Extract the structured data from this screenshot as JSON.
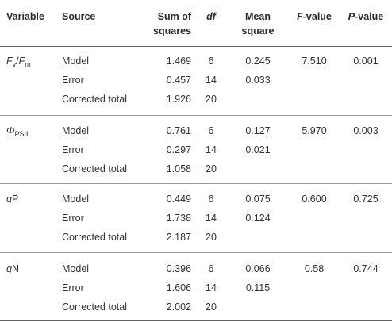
{
  "header": {
    "variable": "Variable",
    "source": "Source",
    "sum_sq_line1": "Sum of",
    "sum_sq_line2": "squares",
    "df": "df",
    "mean_sq_line1": "Mean",
    "mean_sq_line2": "square",
    "f_value_letter": "F",
    "f_value_suffix": "-value",
    "p_value_letter": "P",
    "p_value_suffix": "-value"
  },
  "groups": [
    {
      "variable_main": "F",
      "variable_sub": "v",
      "variable_sep": "/",
      "variable_main2": "F",
      "variable_sub2": "m",
      "f_value": "7.510",
      "p_value": "0.001",
      "rows": [
        {
          "source": "Model",
          "ss": "1.469",
          "df": "6",
          "ms": "0.245"
        },
        {
          "source": "Error",
          "ss": "0.457",
          "df": "14",
          "ms": "0.033"
        },
        {
          "source": "Corrected total",
          "ss": "1.926",
          "df": "20",
          "ms": ""
        }
      ]
    },
    {
      "variable_main": "Φ",
      "variable_sub": "PSII",
      "f_value": "5.970",
      "p_value": "0.003",
      "rows": [
        {
          "source": "Model",
          "ss": "0.761",
          "df": "6",
          "ms": "0.127"
        },
        {
          "source": "Error",
          "ss": "0.297",
          "df": "14",
          "ms": "0.021"
        },
        {
          "source": "Corrected total",
          "ss": "1.058",
          "df": "20",
          "ms": ""
        }
      ]
    },
    {
      "variable_main": "q",
      "variable_rest": "P",
      "f_value": "0.600",
      "p_value": "0.725",
      "rows": [
        {
          "source": "Model",
          "ss": "0.449",
          "df": "6",
          "ms": "0.075"
        },
        {
          "source": "Error",
          "ss": "1.738",
          "df": "14",
          "ms": "0.124"
        },
        {
          "source": "Corrected total",
          "ss": "2.187",
          "df": "20",
          "ms": ""
        }
      ]
    },
    {
      "variable_main": "q",
      "variable_rest": "N",
      "f_value": "0.58",
      "p_value": "0.744",
      "rows": [
        {
          "source": "Model",
          "ss": "0.396",
          "df": "6",
          "ms": "0.066"
        },
        {
          "source": "Error",
          "ss": "1.606",
          "df": "14",
          "ms": "0.115"
        },
        {
          "source": "Corrected total",
          "ss": "2.002",
          "df": "20",
          "ms": ""
        }
      ]
    }
  ]
}
